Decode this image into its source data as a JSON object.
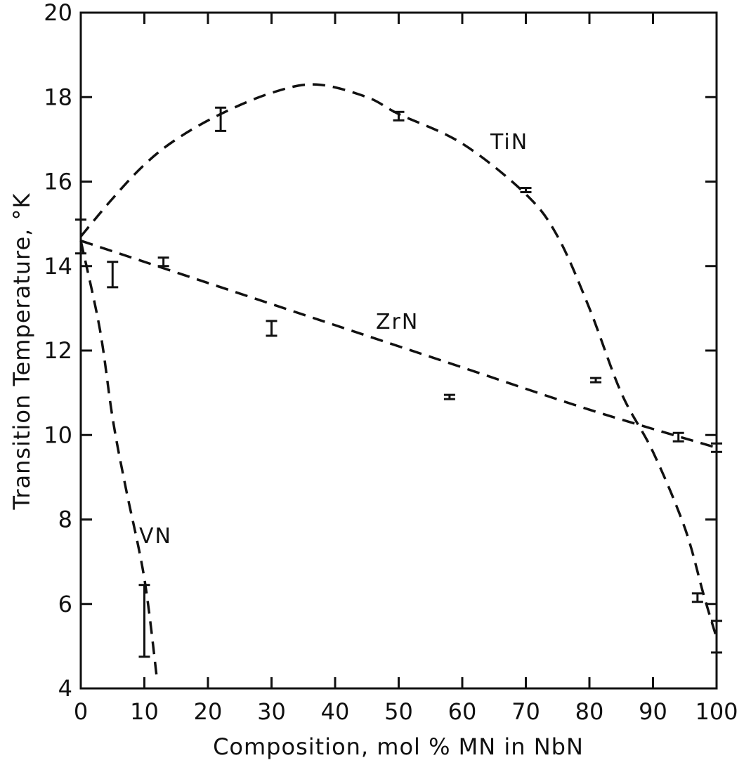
{
  "chart_data": {
    "type": "line",
    "title": "",
    "xlabel": "Composition, mol % MN in NbN",
    "ylabel": "Transition Temperature, °K",
    "xlim": [
      0,
      100
    ],
    "ylim": [
      4,
      20
    ],
    "x_ticks": [
      0,
      10,
      20,
      30,
      40,
      50,
      60,
      70,
      80,
      90,
      100
    ],
    "y_ticks": [
      4,
      6,
      8,
      10,
      12,
      14,
      16,
      18,
      20
    ],
    "x_tick_labels": [
      "0",
      "10",
      "20",
      "30",
      "40",
      "50",
      "60",
      "70",
      "80",
      "90",
      "100"
    ],
    "y_tick_labels": [
      "4",
      "6",
      "8",
      "10",
      "12",
      "14",
      "16",
      "18",
      "20"
    ],
    "grid": false,
    "series": [
      {
        "name": "TiN",
        "style": "dashed",
        "curve": [
          [
            0,
            14.7
          ],
          [
            5,
            15.6
          ],
          [
            10,
            16.4
          ],
          [
            15,
            17.0
          ],
          [
            22,
            17.6
          ],
          [
            30,
            18.1
          ],
          [
            37,
            18.3
          ],
          [
            45,
            18.0
          ],
          [
            50,
            17.6
          ],
          [
            60,
            16.9
          ],
          [
            70,
            15.7
          ],
          [
            75,
            14.7
          ],
          [
            80,
            13.0
          ],
          [
            85,
            11.0
          ],
          [
            90,
            9.6
          ],
          [
            95,
            7.8
          ],
          [
            98,
            6.2
          ],
          [
            100,
            5.2
          ]
        ],
        "points": [
          {
            "x": 22,
            "y": 17.5,
            "ymin": 17.2,
            "ymax": 17.75
          },
          {
            "x": 50,
            "y": 17.55,
            "ymin": 17.45,
            "ymax": 17.65
          },
          {
            "x": 70,
            "y": 15.8,
            "ymin": 15.75,
            "ymax": 15.85
          },
          {
            "x": 97,
            "y": 6.15,
            "ymin": 6.05,
            "ymax": 6.25
          },
          {
            "x": 100,
            "y": 5.3,
            "ymin": 4.85,
            "ymax": 5.6
          }
        ]
      },
      {
        "name": "ZrN",
        "style": "dashed",
        "curve": [
          [
            0,
            14.6
          ],
          [
            20,
            13.6
          ],
          [
            40,
            12.6
          ],
          [
            60,
            11.6
          ],
          [
            80,
            10.6
          ],
          [
            100,
            9.7
          ]
        ],
        "points": [
          {
            "x": 5,
            "y": 13.9,
            "ymin": 13.5,
            "ymax": 14.1
          },
          {
            "x": 13,
            "y": 14.1,
            "ymin": 14.0,
            "ymax": 14.2
          },
          {
            "x": 30,
            "y": 12.5,
            "ymin": 12.35,
            "ymax": 12.7
          },
          {
            "x": 58,
            "y": 10.9,
            "ymin": 10.85,
            "ymax": 10.95
          },
          {
            "x": 81,
            "y": 11.3,
            "ymin": 11.25,
            "ymax": 11.35
          },
          {
            "x": 94,
            "y": 9.95,
            "ymin": 9.85,
            "ymax": 10.05
          },
          {
            "x": 100,
            "y": 9.7,
            "ymin": 9.6,
            "ymax": 9.8
          }
        ]
      },
      {
        "name": "VN",
        "style": "dashed",
        "curve": [
          [
            0,
            14.6
          ],
          [
            3,
            12.5
          ],
          [
            5,
            10.4
          ],
          [
            7,
            8.8
          ],
          [
            10,
            6.6
          ],
          [
            12,
            4.2
          ]
        ],
        "points": [
          {
            "x": 0,
            "y": 14.7,
            "ymin": 14.3,
            "ymax": 15.1
          },
          {
            "x": 10,
            "y": 6.4,
            "ymin": 4.75,
            "ymax": 6.45
          }
        ]
      }
    ]
  }
}
